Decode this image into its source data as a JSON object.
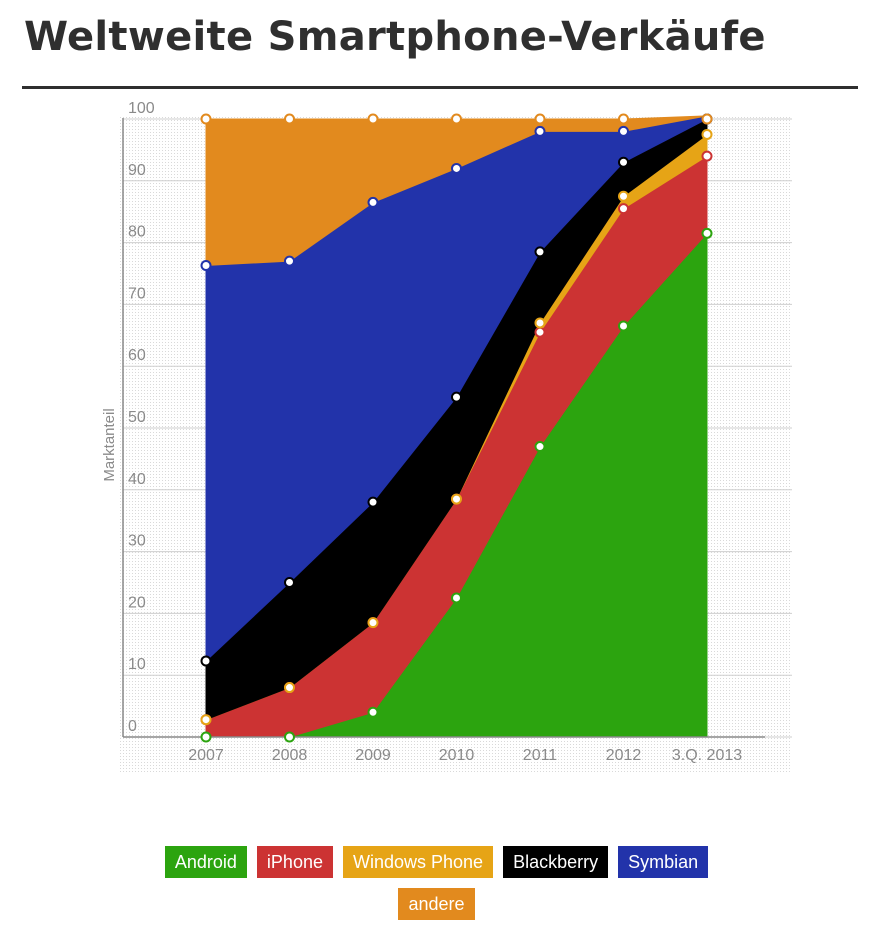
{
  "title": "Weltweite Smartphone-Verkäufe",
  "chart_data": {
    "type": "area",
    "stacked": true,
    "categories": [
      "2007",
      "2008",
      "2009",
      "2010",
      "2011",
      "2012",
      "3.Q. 2013"
    ],
    "ylabel": "Marktanteil",
    "ylim": [
      0,
      100
    ],
    "yticks": [
      "0",
      "10",
      "20",
      "30",
      "40",
      "50",
      "60",
      "70",
      "80",
      "90",
      "100"
    ],
    "grid": true,
    "legend_position": "bottom",
    "series": [
      {
        "name": "Android",
        "color": "#2ca40f",
        "values": [
          0,
          0,
          4,
          22.5,
          47,
          66.5,
          81.5
        ]
      },
      {
        "name": "iPhone",
        "color": "#cc3333",
        "values": [
          2.8,
          8,
          14.5,
          16,
          18.5,
          19,
          12.5
        ]
      },
      {
        "name": "Windows Phone",
        "color": "#e6a416",
        "values": [
          0,
          0,
          0,
          0,
          1.5,
          2,
          3.5
        ]
      },
      {
        "name": "Blackberry",
        "color": "#000000",
        "values": [
          9.5,
          17,
          19.5,
          16.5,
          11.5,
          5.5,
          2.5
        ]
      },
      {
        "name": "Symbian",
        "color": "#2233aa",
        "values": [
          64,
          52,
          48.5,
          37,
          19.5,
          5,
          0.5
        ]
      },
      {
        "name": "andere",
        "color": "#e28a1e",
        "values": [
          23.7,
          23,
          13.5,
          8,
          2,
          2,
          0
        ]
      }
    ]
  }
}
